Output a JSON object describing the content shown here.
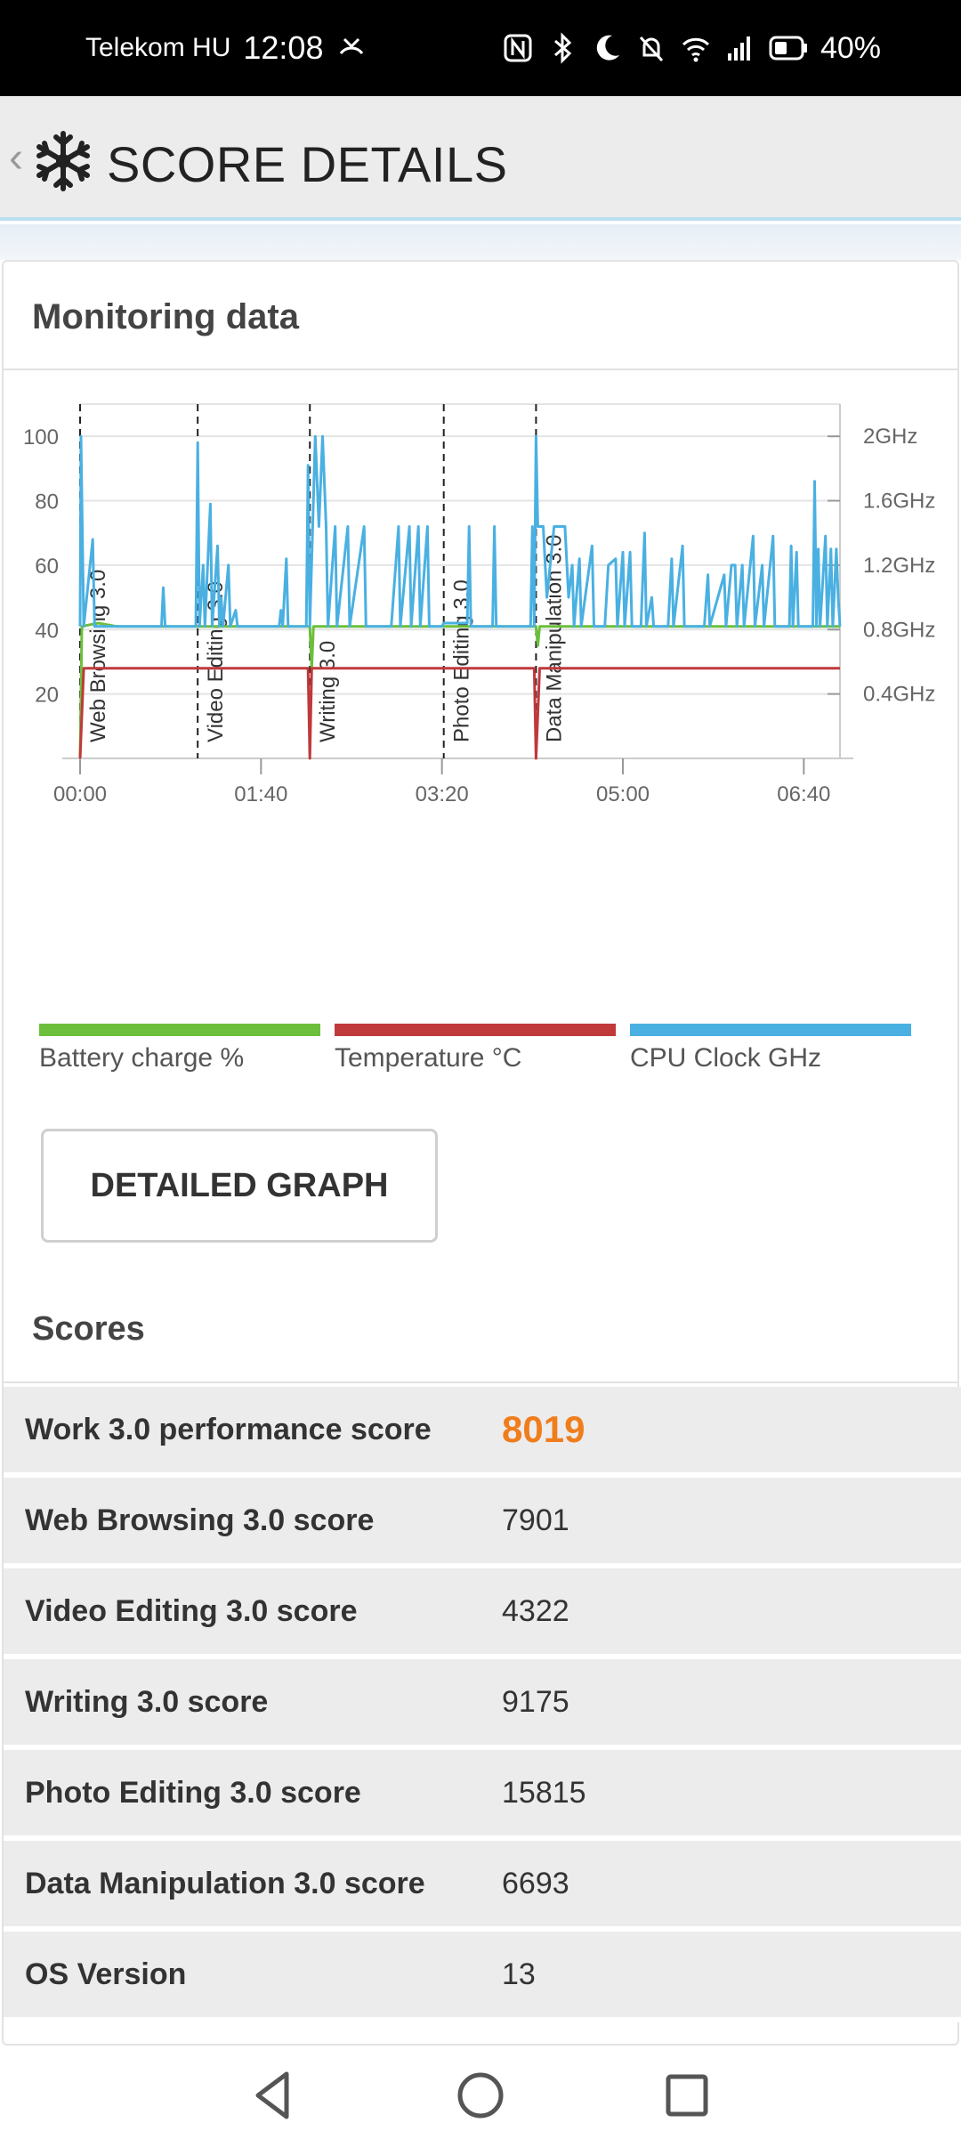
{
  "status_bar": {
    "carrier": "Telekom HU",
    "time": "12:08",
    "battery_percent": "40%",
    "icons": [
      "missed-call-icon",
      "nfc-icon",
      "bluetooth-icon",
      "moon-icon",
      "mute-icon",
      "wifi-icon",
      "signal-icon",
      "battery-icon"
    ]
  },
  "header": {
    "title": "SCORE DETAILS",
    "back_glyph": "‹"
  },
  "monitoring": {
    "title": "Monitoring data",
    "detailed_graph_label": "DETAILED GRAPH"
  },
  "chart_data": {
    "type": "line",
    "x_ticks": [
      "00:00",
      "01:40",
      "03:20",
      "05:00",
      "06:40"
    ],
    "x_tick_minutes": [
      0,
      100,
      200,
      300,
      400
    ],
    "x_range_minutes": [
      0,
      420
    ],
    "y_left_ticks": [
      "20",
      "40",
      "60",
      "80",
      "100"
    ],
    "y_left_range": [
      0,
      110
    ],
    "y_right_ticks": [
      "0.4GHz",
      "0.8GHz",
      "1.2GHz",
      "1.6GHz",
      "2GHz"
    ],
    "y_right_range_ghz": [
      0,
      2.2
    ],
    "grid": true,
    "sections": [
      {
        "label": "Web Browsing 3.0",
        "start_minute": 0
      },
      {
        "label": "Video Editing 3.0",
        "start_minute": 65
      },
      {
        "label": "Writing 3.0",
        "start_minute": 127
      },
      {
        "label": "Photo Editing 3.0",
        "start_minute": 201
      },
      {
        "label": "Data Manipulation 3.0",
        "start_minute": 252
      }
    ],
    "series": [
      {
        "name": "Battery charge %",
        "color": "#6cbf3c",
        "axis": "left",
        "points": [
          [
            0,
            0
          ],
          [
            1,
            41
          ],
          [
            10,
            42
          ],
          [
            20,
            41
          ],
          [
            127,
            41
          ],
          [
            128,
            28
          ],
          [
            129,
            41
          ],
          [
            252,
            41
          ],
          [
            253,
            35
          ],
          [
            254,
            41
          ],
          [
            420,
            41
          ]
        ]
      },
      {
        "name": "Temperature °C",
        "color": "#c0393b",
        "axis": "left",
        "points": [
          [
            0,
            0
          ],
          [
            2,
            28
          ],
          [
            126,
            28
          ],
          [
            127,
            0
          ],
          [
            128,
            28
          ],
          [
            251,
            28
          ],
          [
            252,
            0
          ],
          [
            254,
            28
          ],
          [
            420,
            28
          ]
        ]
      },
      {
        "name": "CPU Clock GHz",
        "color": "#4ab0e2",
        "axis": "right",
        "points": [
          [
            0,
            0.82
          ],
          [
            0.5,
            2.0
          ],
          [
            2,
            0.82
          ],
          [
            7,
            1.36
          ],
          [
            8,
            0.82
          ],
          [
            45,
            0.82
          ],
          [
            46,
            1.06
          ],
          [
            47,
            0.82
          ],
          [
            64,
            0.82
          ],
          [
            65,
            1.96
          ],
          [
            66,
            0.82
          ],
          [
            68,
            1.2
          ],
          [
            69,
            0.82
          ],
          [
            72,
            1.58
          ],
          [
            73,
            0.82
          ],
          [
            76,
            1.32
          ],
          [
            77,
            0.82
          ],
          [
            78,
            1.0
          ],
          [
            79,
            0.82
          ],
          [
            82,
            1.2
          ],
          [
            83,
            0.82
          ],
          [
            86,
            0.92
          ],
          [
            87,
            0.82
          ],
          [
            110,
            0.82
          ],
          [
            111,
            0.92
          ],
          [
            112,
            0.82
          ],
          [
            114,
            1.24
          ],
          [
            115,
            0.82
          ],
          [
            125,
            0.82
          ],
          [
            126,
            1.82
          ],
          [
            127,
            0.82
          ],
          [
            130,
            2.0
          ],
          [
            132,
            1.44
          ],
          [
            134,
            2.0
          ],
          [
            136,
            1.44
          ],
          [
            137,
            0.82
          ],
          [
            141,
            1.44
          ],
          [
            142,
            0.82
          ],
          [
            148,
            1.44
          ],
          [
            149,
            0.82
          ],
          [
            157,
            1.44
          ],
          [
            158,
            0.82
          ],
          [
            172,
            0.82
          ],
          [
            176,
            1.44
          ],
          [
            177,
            0.82
          ],
          [
            182,
            1.44
          ],
          [
            183,
            0.82
          ],
          [
            187,
            1.44
          ],
          [
            188,
            0.82
          ],
          [
            192,
            1.44
          ],
          [
            193,
            0.82
          ],
          [
            200,
            0.82
          ],
          [
            201,
            0.84
          ],
          [
            214,
            0.84
          ],
          [
            215,
            1.44
          ],
          [
            216,
            0.82
          ],
          [
            228,
            0.82
          ],
          [
            229,
            1.44
          ],
          [
            230,
            0.82
          ],
          [
            249,
            0.82
          ],
          [
            250,
            1.44
          ],
          [
            251,
            0.82
          ],
          [
            252,
            2.0
          ],
          [
            253,
            1.44
          ],
          [
            256,
            1.44
          ],
          [
            258,
            1.0
          ],
          [
            262,
            1.44
          ],
          [
            268,
            1.44
          ],
          [
            270,
            1.0
          ],
          [
            272,
            1.2
          ],
          [
            273,
            0.82
          ],
          [
            276,
            1.24
          ],
          [
            277,
            0.82
          ],
          [
            283,
            1.32
          ],
          [
            284,
            0.82
          ],
          [
            290,
            0.82
          ],
          [
            292,
            1.2
          ],
          [
            296,
            1.24
          ],
          [
            297,
            0.82
          ],
          [
            300,
            1.28
          ],
          [
            301,
            0.82
          ],
          [
            304,
            1.28
          ],
          [
            305,
            0.82
          ],
          [
            310,
            0.82
          ],
          [
            312,
            1.4
          ],
          [
            313,
            0.82
          ],
          [
            316,
            1.0
          ],
          [
            317,
            0.82
          ],
          [
            325,
            0.82
          ],
          [
            327,
            1.24
          ],
          [
            328,
            0.82
          ],
          [
            333,
            1.32
          ],
          [
            334,
            0.82
          ],
          [
            345,
            0.82
          ],
          [
            347,
            1.14
          ],
          [
            348,
            0.82
          ],
          [
            356,
            1.14
          ],
          [
            357,
            0.82
          ],
          [
            360,
            1.2
          ],
          [
            362,
            1.2
          ],
          [
            363,
            0.82
          ],
          [
            366,
            1.2
          ],
          [
            367,
            0.82
          ],
          [
            372,
            1.38
          ],
          [
            373,
            0.82
          ],
          [
            377,
            1.2
          ],
          [
            378,
            0.82
          ],
          [
            383,
            1.38
          ],
          [
            384,
            0.82
          ],
          [
            392,
            0.82
          ],
          [
            393,
            1.32
          ],
          [
            394,
            0.82
          ],
          [
            396,
            1.28
          ],
          [
            397,
            0.82
          ],
          [
            405,
            0.82
          ],
          [
            406,
            1.72
          ],
          [
            407,
            0.82
          ],
          [
            408,
            1.3
          ],
          [
            409,
            0.82
          ],
          [
            412,
            1.38
          ],
          [
            413,
            0.82
          ],
          [
            415,
            1.3
          ],
          [
            416,
            0.82
          ],
          [
            418,
            1.3
          ],
          [
            419,
            1.0
          ],
          [
            420,
            0.82
          ]
        ]
      }
    ]
  },
  "scores": {
    "title": "Scores",
    "rows": [
      {
        "label": "Work 3.0 performance score",
        "value": "8019",
        "highlight": true
      },
      {
        "label": "Web Browsing 3.0 score",
        "value": "7901"
      },
      {
        "label": "Video Editing 3.0 score",
        "value": "4322"
      },
      {
        "label": "Writing 3.0 score",
        "value": "9175"
      },
      {
        "label": "Photo Editing 3.0 score",
        "value": "15815"
      },
      {
        "label": "Data Manipulation 3.0 score",
        "value": "6693"
      },
      {
        "label": "OS Version",
        "value": "13"
      }
    ]
  },
  "nav": {
    "buttons": [
      "back-nav-icon",
      "home-nav-icon",
      "recents-nav-icon"
    ]
  }
}
